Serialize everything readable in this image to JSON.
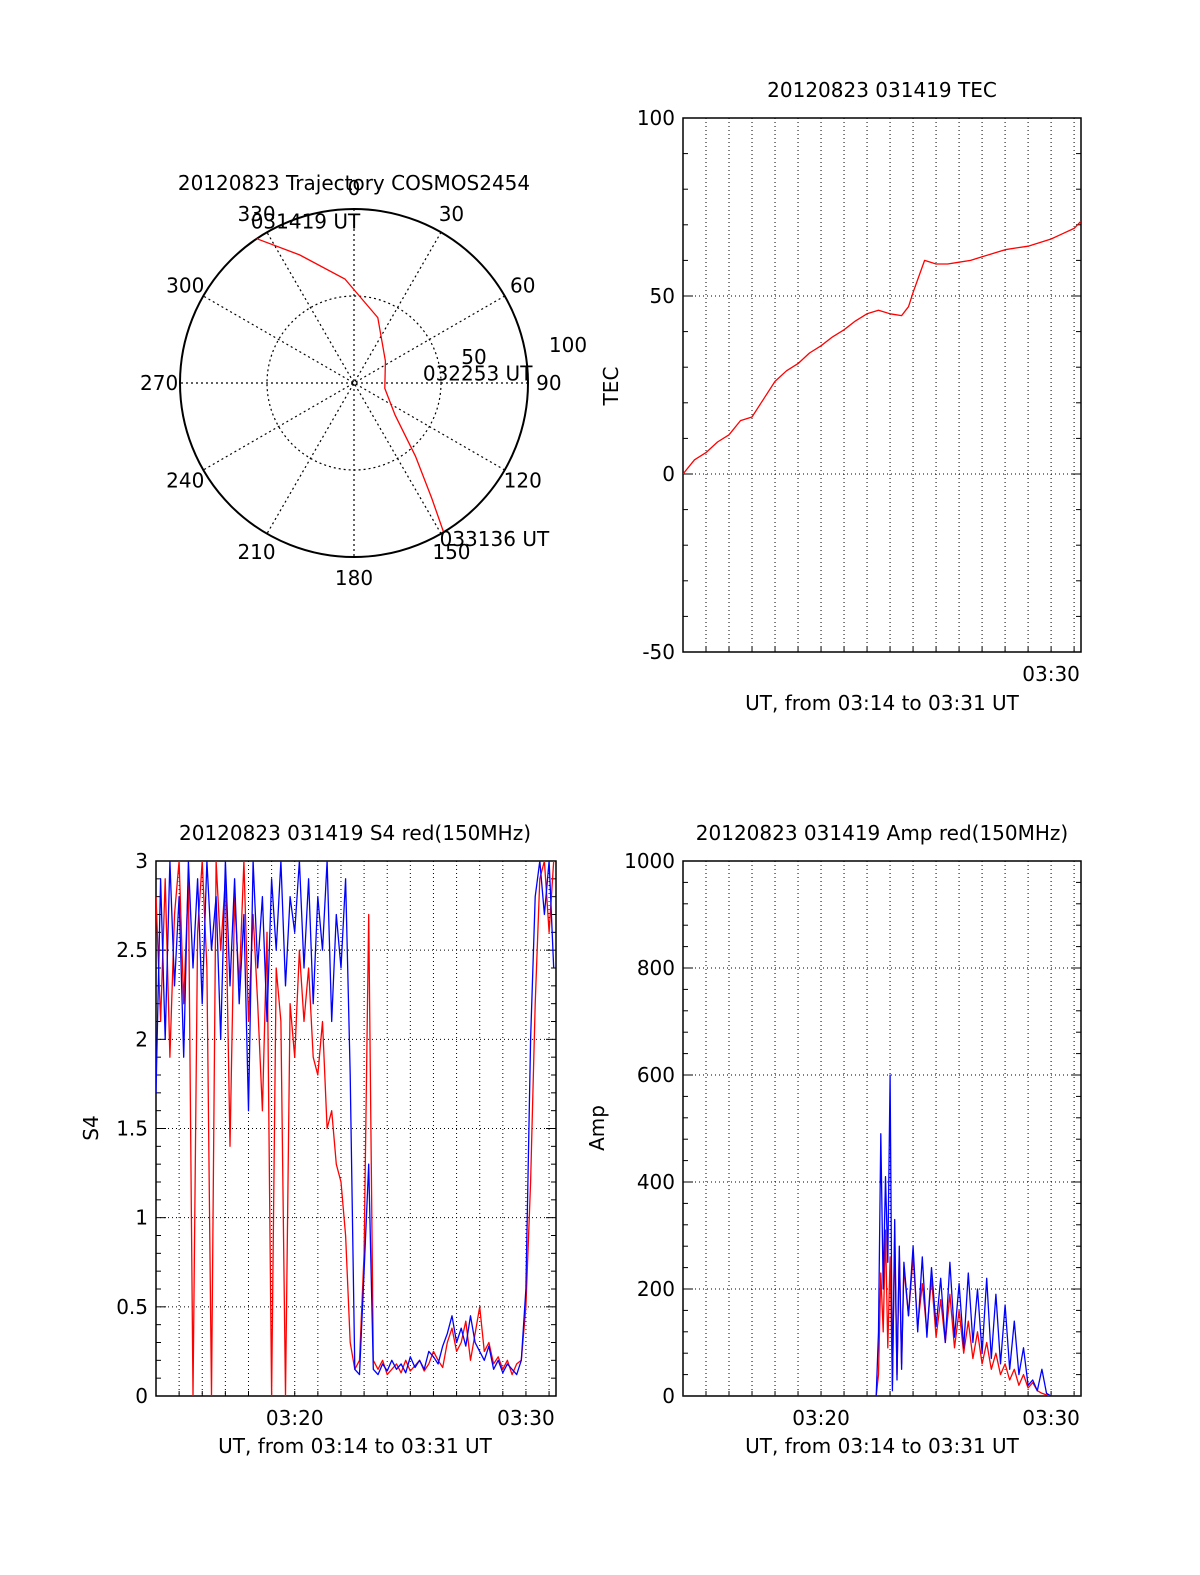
{
  "chart_data": [
    {
      "type": "polar",
      "title": "20120823 Trajectory COSMOS2454",
      "angle_labels": [
        "0",
        "30",
        "60",
        "90",
        "120",
        "150",
        "180",
        "210",
        "240",
        "270",
        "300",
        "330"
      ],
      "radius_labels": [
        "50",
        "100"
      ],
      "series": [
        {
          "color": "#ff0000",
          "points": [
            {
              "azimuth": 326,
              "elevation_ring": 100
            },
            {
              "azimuth": 337,
              "elevation_ring": 80
            },
            {
              "azimuth": 355,
              "elevation_ring": 60
            },
            {
              "azimuth": 20,
              "elevation_ring": 40
            },
            {
              "azimuth": 55,
              "elevation_ring": 22
            },
            {
              "azimuth": 100,
              "elevation_ring": 18
            },
            {
              "azimuth": 128,
              "elevation_ring": 30
            },
            {
              "azimuth": 140,
              "elevation_ring": 55
            },
            {
              "azimuth": 146,
              "elevation_ring": 80
            },
            {
              "azimuth": 149,
              "elevation_ring": 100
            }
          ]
        }
      ],
      "annotations": [
        {
          "text": "031419 UT",
          "azimuth": 326,
          "elevation_ring": 100
        },
        {
          "text": "032253 UT",
          "azimuth": 100,
          "elevation_ring": 18
        },
        {
          "text": "033136 UT",
          "azimuth": 149,
          "elevation_ring": 100
        }
      ]
    },
    {
      "type": "line",
      "title": "20120823 031419 TEC",
      "xlabel": "UT, from 03:14 to 03:31 UT",
      "ylabel": "TEC",
      "xlim": [
        0,
        17.3
      ],
      "ylim": [
        -50,
        100
      ],
      "yticks": [
        -50,
        0,
        50,
        100
      ],
      "xticks": [
        {
          "x": 16.0,
          "label": "03:30"
        }
      ],
      "grid": true,
      "series": [
        {
          "color": "#ff0000",
          "x": [
            0,
            0.5,
            1,
            1.5,
            2,
            2.5,
            3,
            3.5,
            4,
            4.5,
            5,
            5.5,
            6,
            6.5,
            7,
            7.5,
            8,
            8.5,
            9,
            9.5,
            9.8,
            10,
            10.5,
            11,
            11.5,
            12,
            12.5,
            13,
            13.5,
            14,
            14.5,
            15,
            15.5,
            16,
            16.5,
            17,
            17.3
          ],
          "y": [
            0,
            4,
            6,
            9,
            11,
            15,
            16,
            21,
            26,
            29,
            31,
            34,
            36,
            38.5,
            40.5,
            43,
            45,
            46,
            45,
            44.5,
            47,
            51,
            60,
            59,
            59,
            59.5,
            60,
            61,
            62,
            63,
            63.5,
            64,
            65,
            66,
            67.5,
            69,
            71
          ]
        }
      ]
    },
    {
      "type": "line",
      "title": "20120823 031419 S4 red(150MHz)",
      "xlabel": "UT, from 03:14 to 03:31 UT",
      "ylabel": "S4",
      "xlim": [
        0,
        17.3
      ],
      "ylim": [
        0,
        3
      ],
      "yticks": [
        0,
        0.5,
        1,
        1.5,
        2,
        2.5,
        3
      ],
      "xticks": [
        {
          "x": 6.0,
          "label": "03:20"
        },
        {
          "x": 16.0,
          "label": "03:30"
        }
      ],
      "grid": true,
      "series": [
        {
          "color": "#ff0000",
          "x": [
            0,
            0.2,
            0.4,
            0.6,
            0.8,
            1.0,
            1.2,
            1.4,
            1.6,
            1.8,
            2.0,
            2.2,
            2.4,
            2.6,
            2.8,
            3.0,
            3.2,
            3.4,
            3.6,
            3.8,
            4.0,
            4.2,
            4.4,
            4.6,
            4.8,
            5.0,
            5.2,
            5.4,
            5.6,
            5.8,
            6.0,
            6.2,
            6.4,
            6.6,
            6.8,
            7.0,
            7.2,
            7.4,
            7.6,
            7.8,
            8.0,
            8.2,
            8.4,
            8.6,
            8.8,
            9.0,
            9.2,
            9.4,
            9.6,
            9.8,
            10.0,
            10.2,
            10.4,
            10.6,
            10.8,
            11.0,
            11.2,
            11.4,
            11.6,
            11.8,
            12.0,
            12.2,
            12.4,
            12.6,
            12.8,
            13.0,
            13.2,
            13.4,
            13.6,
            13.8,
            14.0,
            14.2,
            14.4,
            14.6,
            14.8,
            15.0,
            15.2,
            15.4,
            15.6,
            15.8,
            16.0,
            16.2,
            16.4,
            16.6,
            16.8,
            17.0,
            17.2
          ],
          "y": [
            2.8,
            2.1,
            2.9,
            1.9,
            2.7,
            3.0,
            2.2,
            2.9,
            0.0,
            2.6,
            3.0,
            2.4,
            0.0,
            3.0,
            2.5,
            2.9,
            1.4,
            2.8,
            2.3,
            3.0,
            2.1,
            2.7,
            2.2,
            1.6,
            2.6,
            0.0,
            2.4,
            2.1,
            0.0,
            2.2,
            1.9,
            2.5,
            2.1,
            2.4,
            1.9,
            1.8,
            2.1,
            1.5,
            1.6,
            1.3,
            1.2,
            0.9,
            0.3,
            0.15,
            0.2,
            0.8,
            2.7,
            0.2,
            0.15,
            0.2,
            0.12,
            0.15,
            0.18,
            0.13,
            0.2,
            0.14,
            0.17,
            0.2,
            0.14,
            0.18,
            0.25,
            0.2,
            0.16,
            0.3,
            0.38,
            0.25,
            0.3,
            0.42,
            0.2,
            0.35,
            0.5,
            0.25,
            0.3,
            0.18,
            0.22,
            0.15,
            0.2,
            0.12,
            0.18,
            0.2,
            0.5,
            1.2,
            2.2,
            2.9,
            3.0,
            2.6,
            3.0
          ]
        },
        {
          "color": "#0000ff",
          "x": [
            0,
            0.2,
            0.4,
            0.6,
            0.8,
            1.0,
            1.2,
            1.4,
            1.6,
            1.8,
            2.0,
            2.2,
            2.4,
            2.6,
            2.8,
            3.0,
            3.2,
            3.4,
            3.6,
            3.8,
            4.0,
            4.2,
            4.4,
            4.6,
            4.8,
            5.0,
            5.2,
            5.4,
            5.6,
            5.8,
            6.0,
            6.2,
            6.4,
            6.6,
            6.8,
            7.0,
            7.2,
            7.4,
            7.6,
            7.8,
            8.0,
            8.2,
            8.4,
            8.6,
            8.8,
            9.0,
            9.2,
            9.4,
            9.6,
            9.8,
            10.0,
            10.2,
            10.4,
            10.6,
            10.8,
            11.0,
            11.2,
            11.4,
            11.6,
            11.8,
            12.0,
            12.2,
            12.4,
            12.6,
            12.8,
            13.0,
            13.2,
            13.4,
            13.6,
            13.8,
            14.0,
            14.2,
            14.4,
            14.6,
            14.8,
            15.0,
            15.2,
            15.4,
            15.6,
            15.8,
            16.0,
            16.2,
            16.4,
            16.6,
            16.8,
            17.0,
            17.2
          ],
          "y": [
            1.7,
            2.9,
            2.0,
            3.0,
            2.3,
            2.8,
            1.9,
            3.0,
            2.4,
            2.9,
            2.2,
            3.0,
            2.5,
            2.8,
            2.0,
            3.0,
            2.3,
            2.9,
            2.2,
            2.7,
            1.6,
            3.0,
            2.4,
            2.8,
            2.1,
            2.9,
            2.5,
            3.0,
            2.3,
            2.8,
            2.6,
            3.0,
            2.4,
            2.9,
            2.2,
            2.8,
            2.5,
            3.0,
            2.1,
            2.7,
            2.4,
            2.9,
            1.8,
            0.15,
            0.12,
            0.7,
            1.3,
            0.15,
            0.12,
            0.18,
            0.14,
            0.2,
            0.15,
            0.18,
            0.13,
            0.22,
            0.16,
            0.2,
            0.15,
            0.25,
            0.22,
            0.18,
            0.28,
            0.35,
            0.45,
            0.3,
            0.38,
            0.28,
            0.45,
            0.3,
            0.25,
            0.2,
            0.28,
            0.15,
            0.2,
            0.13,
            0.18,
            0.15,
            0.12,
            0.2,
            0.6,
            2.0,
            2.8,
            3.0,
            2.7,
            3.0,
            2.4
          ]
        }
      ]
    },
    {
      "type": "line",
      "title": "20120823 031419 Amp red(150MHz)",
      "xlabel": "UT, from 03:14 to 03:31 UT",
      "ylabel": "Amp",
      "xlim": [
        0,
        17.3
      ],
      "ylim": [
        0,
        1000
      ],
      "yticks": [
        0,
        200,
        400,
        600,
        800,
        1000
      ],
      "xticks": [
        {
          "x": 6.0,
          "label": "03:20"
        },
        {
          "x": 16.0,
          "label": "03:30"
        }
      ],
      "grid": true,
      "series": [
        {
          "color": "#ff0000",
          "x": [
            0,
            8.4,
            8.5,
            8.6,
            8.7,
            8.8,
            8.9,
            9.0,
            9.1,
            9.2,
            9.3,
            9.4,
            9.5,
            9.6,
            9.8,
            10.0,
            10.2,
            10.4,
            10.6,
            10.8,
            11.0,
            11.2,
            11.4,
            11.6,
            11.8,
            12.0,
            12.2,
            12.4,
            12.6,
            12.8,
            13.0,
            13.2,
            13.4,
            13.6,
            13.8,
            14.0,
            14.2,
            14.4,
            14.6,
            14.8,
            15.0,
            15.2,
            15.4,
            15.6,
            15.8,
            16.0,
            16.2,
            16.5,
            17.3
          ],
          "y": [
            0,
            0,
            40,
            230,
            120,
            310,
            90,
            260,
            20,
            300,
            40,
            270,
            60,
            240,
            150,
            260,
            130,
            210,
            120,
            220,
            110,
            180,
            100,
            190,
            90,
            160,
            80,
            140,
            70,
            120,
            60,
            100,
            50,
            80,
            40,
            60,
            30,
            50,
            20,
            40,
            15,
            25,
            10,
            5,
            2,
            0,
            0,
            0,
            0
          ]
        },
        {
          "color": "#0000ff",
          "x": [
            0,
            8.4,
            8.5,
            8.6,
            8.7,
            8.8,
            8.9,
            9.0,
            9.1,
            9.2,
            9.3,
            9.4,
            9.5,
            9.6,
            9.8,
            10.0,
            10.2,
            10.4,
            10.6,
            10.8,
            11.0,
            11.2,
            11.4,
            11.6,
            11.8,
            12.0,
            12.2,
            12.4,
            12.6,
            12.8,
            13.0,
            13.2,
            13.4,
            13.6,
            13.8,
            14.0,
            14.2,
            14.4,
            14.6,
            14.8,
            15.0,
            15.2,
            15.4,
            15.6,
            15.8,
            16.0,
            16.2,
            16.5,
            17.3
          ],
          "y": [
            0,
            0,
            120,
            490,
            200,
            410,
            250,
            600,
            10,
            330,
            30,
            280,
            50,
            250,
            150,
            280,
            120,
            260,
            110,
            240,
            130,
            220,
            100,
            250,
            110,
            210,
            90,
            230,
            100,
            200,
            80,
            220,
            70,
            190,
            60,
            170,
            50,
            140,
            40,
            90,
            20,
            30,
            10,
            50,
            5,
            0,
            0,
            0,
            0
          ]
        }
      ]
    }
  ]
}
